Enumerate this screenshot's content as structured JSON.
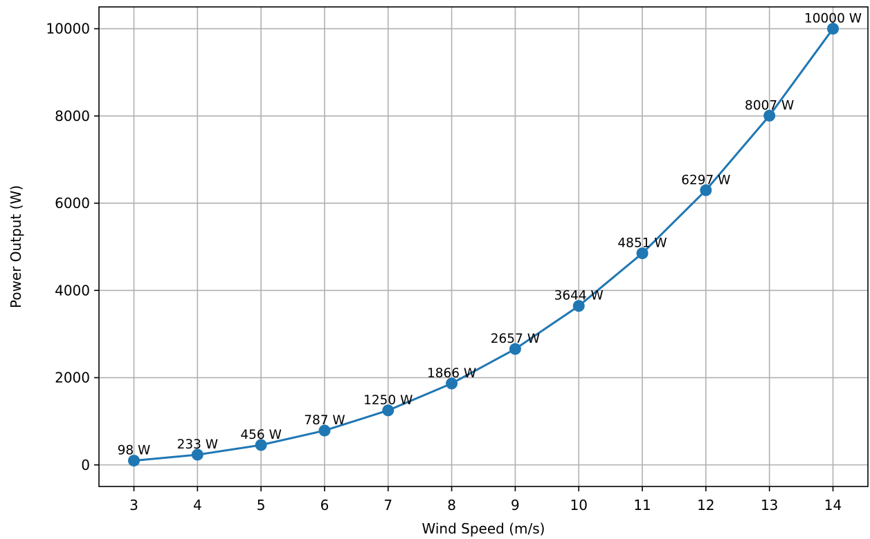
{
  "chart_data": {
    "type": "line",
    "title": "",
    "xlabel": "Wind Speed (m/s)",
    "ylabel": "Power Output (W)",
    "x": [
      3,
      4,
      5,
      6,
      7,
      8,
      9,
      10,
      11,
      12,
      13,
      14
    ],
    "series": [
      {
        "name": "",
        "values": [
          98,
          233,
          456,
          787,
          1250,
          1866,
          2657,
          3644,
          4851,
          6297,
          8007,
          10000
        ],
        "labels": [
          "98 W",
          "233 W",
          "456 W",
          "787 W",
          "1250 W",
          "1866 W",
          "2657 W",
          "3644 W",
          "4851 W",
          "6297 W",
          "8007 W",
          "10000 W"
        ],
        "color": "#1f77b4",
        "marker": "circle"
      }
    ],
    "xticks": [
      3,
      4,
      5,
      6,
      7,
      8,
      9,
      10,
      11,
      12,
      13,
      14
    ],
    "xtick_labels": [
      "3",
      "4",
      "5",
      "6",
      "7",
      "8",
      "9",
      "10",
      "11",
      "12",
      "13",
      "14"
    ],
    "yticks": [
      0,
      2000,
      4000,
      6000,
      8000,
      10000
    ],
    "ytick_labels": [
      "0",
      "2000",
      "4000",
      "6000",
      "8000",
      "10000"
    ],
    "xlim": [
      2.45,
      14.55
    ],
    "ylim": [
      -495,
      10500
    ],
    "grid": true,
    "legend": "none"
  }
}
